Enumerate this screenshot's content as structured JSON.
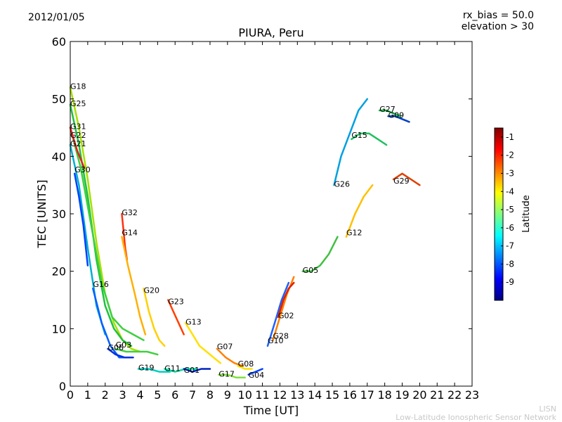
{
  "header": {
    "date": "2012/01/05",
    "info_line1": "rx_bias = 50.0",
    "info_line2": "elevation > 30"
  },
  "credits": {
    "line1": "LISN",
    "line2": "Low-Latitude Ionospheric Sensor Network"
  },
  "chart_data": {
    "type": "line",
    "title": "PIURA, Peru",
    "xlabel": "Time [UT]",
    "ylabel": "TEC [UNITS]",
    "xlim": [
      0,
      23
    ],
    "ylim": [
      0,
      60
    ],
    "xticks": [
      0,
      1,
      2,
      3,
      4,
      5,
      6,
      7,
      8,
      9,
      10,
      11,
      12,
      13,
      14,
      15,
      16,
      17,
      18,
      19,
      20,
      21,
      22,
      23
    ],
    "yticks": [
      0,
      10,
      20,
      30,
      40,
      50,
      60
    ],
    "grid": false,
    "colorbar": {
      "label": "Latitude",
      "range": [
        -10,
        -0.5
      ],
      "ticks": [
        -1,
        -2,
        -3,
        -4,
        -5,
        -6,
        -7,
        -8,
        -9
      ],
      "colors": [
        "#00007f",
        "#0000ff",
        "#007fff",
        "#00ffff",
        "#7fff7f",
        "#ffff00",
        "#ff7f00",
        "#ff0000",
        "#7f0000"
      ]
    },
    "series": [
      {
        "name": "G18",
        "label": [
          0.0,
          51.5
        ],
        "color": "#a8e000",
        "x": [
          0.0,
          0.5,
          1.0,
          1.5,
          2.0,
          2.5,
          3.0,
          3.5,
          4.0
        ],
        "y": [
          52,
          45,
          36,
          25,
          16,
          11,
          8,
          6.5,
          6
        ]
      },
      {
        "name": "G25",
        "label": [
          0.0,
          48.5
        ],
        "color": "#20c040",
        "x": [
          0.0,
          0.5,
          1.0,
          1.5,
          2.0,
          2.5,
          3.0,
          3.5
        ],
        "y": [
          49,
          42,
          33,
          22,
          14,
          10,
          8,
          7
        ]
      },
      {
        "name": "G31",
        "label": [
          0.0,
          44.5
        ],
        "color": "#3cd040",
        "x": [
          0.0,
          0.6,
          1.2,
          1.8,
          2.4,
          3.0,
          3.6,
          4.2
        ],
        "y": [
          45,
          38,
          28,
          18,
          12,
          10,
          9,
          8
        ]
      },
      {
        "name": "G22",
        "label": [
          0.0,
          43.0
        ],
        "color": "#e02020",
        "x": [
          0.0,
          0.4,
          0.8
        ],
        "y": [
          45,
          41,
          38
        ]
      },
      {
        "name": "G21",
        "label": [
          0.0,
          41.5
        ],
        "color": "#00b0d0",
        "x": [
          0.0,
          0.5,
          1.0,
          1.5,
          2.0
        ],
        "y": [
          42,
          35,
          24,
          14,
          9
        ]
      },
      {
        "name": "G30",
        "label": [
          0.25,
          37.0
        ],
        "color": "#0040ff",
        "x": [
          0.25,
          0.5,
          0.75,
          1.0
        ],
        "y": [
          37,
          33,
          28,
          21
        ]
      },
      {
        "name": "G32",
        "label": [
          2.95,
          29.5
        ],
        "color": "#ff3010",
        "x": [
          2.95,
          3.05,
          3.15,
          3.25
        ],
        "y": [
          30,
          27,
          24,
          22
        ]
      },
      {
        "name": "G14",
        "label": [
          2.95,
          26.0
        ],
        "color": "#ffb000",
        "x": [
          2.95,
          3.3,
          3.7,
          4.0,
          4.3
        ],
        "y": [
          26,
          21,
          16,
          12,
          9
        ]
      },
      {
        "name": "G16",
        "label": [
          1.3,
          17.0
        ],
        "color": "#0060ff",
        "x": [
          1.3,
          1.8,
          2.3,
          2.8,
          3.3
        ],
        "y": [
          17,
          11,
          7,
          5,
          5
        ]
      },
      {
        "name": "G20",
        "label": [
          4.2,
          16.0
        ],
        "color": "#ffd000",
        "x": [
          4.2,
          4.5,
          4.8,
          5.1,
          5.4
        ],
        "y": [
          17,
          13,
          10,
          8,
          7
        ]
      },
      {
        "name": "G23",
        "label": [
          5.6,
          14.0
        ],
        "color": "#ff4000",
        "x": [
          5.6,
          5.9,
          6.2,
          6.5
        ],
        "y": [
          15,
          13,
          11,
          9
        ]
      },
      {
        "name": "G13",
        "label": [
          6.6,
          10.5
        ],
        "color": "#ffe000",
        "x": [
          6.6,
          7.0,
          7.4,
          7.8,
          8.2,
          8.6
        ],
        "y": [
          11,
          9,
          7,
          6,
          5,
          4
        ]
      },
      {
        "name": "G06",
        "label": [
          2.15,
          6.0
        ],
        "color": "#0030e0",
        "x": [
          2.15,
          2.6,
          3.1,
          3.6
        ],
        "y": [
          6.5,
          5.5,
          5,
          5
        ]
      },
      {
        "name": "G03",
        "label": [
          2.6,
          6.5
        ],
        "color": "#40d040",
        "x": [
          2.6,
          3.2,
          3.8,
          4.4,
          5.0
        ],
        "y": [
          6.5,
          6,
          6,
          6,
          5.5
        ]
      },
      {
        "name": "G19",
        "label": [
          3.9,
          2.5
        ],
        "color": "#00d0c0",
        "x": [
          3.9,
          4.5,
          5.1,
          5.7
        ],
        "y": [
          3,
          3,
          2.5,
          2.5
        ]
      },
      {
        "name": "G11",
        "label": [
          5.4,
          2.4
        ],
        "color": "#00e0a0",
        "x": [
          5.4,
          6.0,
          6.6,
          7.2
        ],
        "y": [
          3,
          2.5,
          3,
          3
        ]
      },
      {
        "name": "G01",
        "label": [
          6.5,
          2.1
        ],
        "color": "#0020c0",
        "x": [
          6.5,
          7.0,
          7.5,
          8.0
        ],
        "y": [
          3,
          2.5,
          3,
          3
        ]
      },
      {
        "name": "G07",
        "label": [
          8.4,
          6.2
        ],
        "color": "#ff8000",
        "x": [
          8.4,
          8.9,
          9.4,
          9.9
        ],
        "y": [
          6.5,
          5,
          4,
          3.5
        ]
      },
      {
        "name": "G17",
        "label": [
          8.5,
          1.4
        ],
        "color": "#80e040",
        "x": [
          8.5,
          9.0,
          9.5,
          10.0
        ],
        "y": [
          2,
          2,
          1.5,
          1.5
        ]
      },
      {
        "name": "G08",
        "label": [
          9.6,
          3.2
        ],
        "color": "#ffe000",
        "x": [
          9.6,
          10.0,
          10.4
        ],
        "y": [
          3.5,
          3,
          3
        ]
      },
      {
        "name": "G04",
        "label": [
          10.2,
          1.2
        ],
        "color": "#0040ff",
        "x": [
          10.2,
          10.6,
          11.0
        ],
        "y": [
          2,
          2.5,
          3
        ]
      },
      {
        "name": "G10",
        "label": [
          11.3,
          7.2
        ],
        "color": "#2060ff",
        "x": [
          11.3,
          11.7,
          12.1,
          12.5
        ],
        "y": [
          7,
          11,
          15,
          18
        ]
      },
      {
        "name": "G28",
        "label": [
          11.6,
          8.0
        ],
        "color": "#ff8000",
        "x": [
          11.6,
          12.0,
          12.4,
          12.8
        ],
        "y": [
          8,
          12,
          16,
          19
        ]
      },
      {
        "name": "G02",
        "label": [
          11.9,
          11.6
        ],
        "color": "#e02000",
        "x": [
          11.9,
          12.2,
          12.5,
          12.8
        ],
        "y": [
          12,
          15,
          17,
          18
        ]
      },
      {
        "name": "G05",
        "label": [
          13.3,
          19.5
        ],
        "color": "#40c040",
        "x": [
          13.3,
          13.8,
          14.3,
          14.8,
          15.3
        ],
        "y": [
          20,
          20,
          21,
          23,
          26
        ]
      },
      {
        "name": "G26",
        "label": [
          15.1,
          34.5
        ],
        "color": "#00a0e0",
        "x": [
          15.1,
          15.5,
          16.0,
          16.5,
          17.0
        ],
        "y": [
          35,
          40,
          44,
          48,
          50
        ]
      },
      {
        "name": "G12",
        "label": [
          15.8,
          26.0
        ],
        "color": "#ffc000",
        "x": [
          15.8,
          16.3,
          16.8,
          17.3
        ],
        "y": [
          26,
          30,
          33,
          35
        ]
      },
      {
        "name": "G15",
        "label": [
          16.1,
          43.0
        ],
        "color": "#20c060",
        "x": [
          16.1,
          16.6,
          17.1,
          17.6,
          18.1
        ],
        "y": [
          43,
          44,
          44,
          43,
          42
        ]
      },
      {
        "name": "G27",
        "label": [
          17.7,
          47.5
        ],
        "color": "#10b040",
        "x": [
          17.7,
          18.1,
          18.5,
          18.9
        ],
        "y": [
          48,
          48,
          47.5,
          47
        ]
      },
      {
        "name": "G09",
        "label": [
          18.2,
          46.5
        ],
        "color": "#0040c0",
        "x": [
          18.2,
          18.6,
          19.0,
          19.4
        ],
        "y": [
          47,
          47,
          46.5,
          46
        ]
      },
      {
        "name": "G29",
        "label": [
          18.5,
          35.0
        ],
        "color": "#e04000",
        "x": [
          18.5,
          19.0,
          19.5,
          20.0
        ],
        "y": [
          36,
          37,
          36,
          35
        ]
      }
    ]
  }
}
